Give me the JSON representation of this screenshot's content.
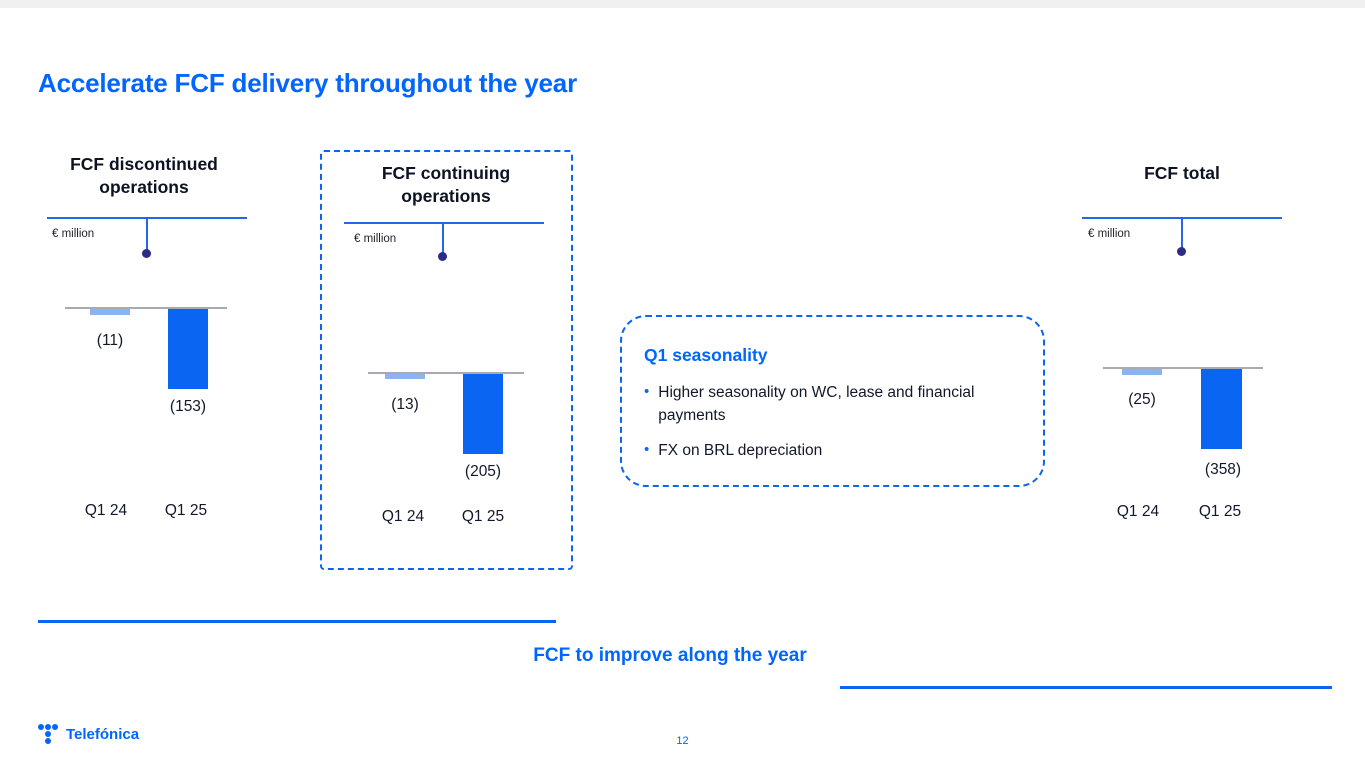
{
  "slide": {
    "title": "Accelerate FCF delivery throughout the year",
    "footer_message": "FCF to improve along the year",
    "page_number": "12",
    "brand": "Telefónica"
  },
  "callout": {
    "title": "Q1 seasonality",
    "bullets": [
      "Higher seasonality on WC, lease and financial payments",
      "FX on BRL depreciation"
    ]
  },
  "chart_data": [
    {
      "type": "bar",
      "title": "FCF discontinued operations",
      "unit": "€ million",
      "categories": [
        "Q1 24",
        "Q1 25"
      ],
      "values": [
        -11,
        -153
      ],
      "labels": [
        "(11)",
        "(153)"
      ],
      "series_colors": {
        "Q1 24": "#8ab4f0",
        "Q1 25": "#0a66f2"
      },
      "baseline": 0,
      "highlighted": false
    },
    {
      "type": "bar",
      "title": "FCF continuing operations",
      "unit": "€ million",
      "categories": [
        "Q1 24",
        "Q1 25"
      ],
      "values": [
        -13,
        -205
      ],
      "labels": [
        "(13)",
        "(205)"
      ],
      "series_colors": {
        "Q1 24": "#8ab4f0",
        "Q1 25": "#0a66f2"
      },
      "baseline": 0,
      "highlighted": true
    },
    {
      "type": "bar",
      "title": "FCF total",
      "unit": "€ million",
      "categories": [
        "Q1 24",
        "Q1 25"
      ],
      "values": [
        -25,
        -358
      ],
      "labels": [
        "(25)",
        "(358)"
      ],
      "series_colors": {
        "Q1 24": "#8ab4f0",
        "Q1 25": "#0a66f2"
      },
      "baseline": 0,
      "highlighted": false
    }
  ],
  "colors": {
    "accent": "#0066ff",
    "bar_current": "#0a66f2",
    "bar_previous": "#8ab4f0",
    "pointer_dot": "#2d2b85",
    "zero_line": "#a6abb3",
    "text_dark": "#11182b"
  }
}
